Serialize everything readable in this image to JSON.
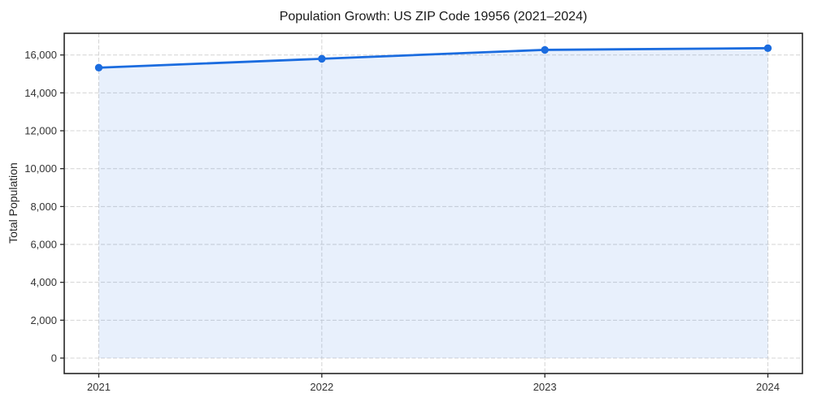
{
  "chart_data": {
    "type": "area",
    "title": "Population Growth: US ZIP Code 19956 (2021–2024)",
    "xlabel": "",
    "ylabel": "Total Population",
    "x": [
      2021,
      2022,
      2023,
      2024
    ],
    "xtick_labels": [
      "2021",
      "2022",
      "2023",
      "2024"
    ],
    "series": [
      {
        "name": "Total Population",
        "values": [
          15330,
          15800,
          16270,
          16360
        ]
      }
    ],
    "yticks": [
      0,
      2000,
      4000,
      6000,
      8000,
      10000,
      12000,
      14000,
      16000
    ],
    "ytick_labels": [
      "0",
      "2,000",
      "4,000",
      "6,000",
      "8,000",
      "10,000",
      "12,000",
      "14,000",
      "16,000"
    ],
    "ylim": [
      -815,
      17145
    ],
    "grid": true,
    "grid_style": "dashed",
    "legend": "none",
    "line_color": "#1b6cdf",
    "marker_color": "#1b6cdf",
    "fill_color": "rgba(27, 108, 223, 0.10)",
    "grid_color": "#d4d4d4",
    "spine_color": "#262626",
    "background_color": "#ffffff"
  }
}
